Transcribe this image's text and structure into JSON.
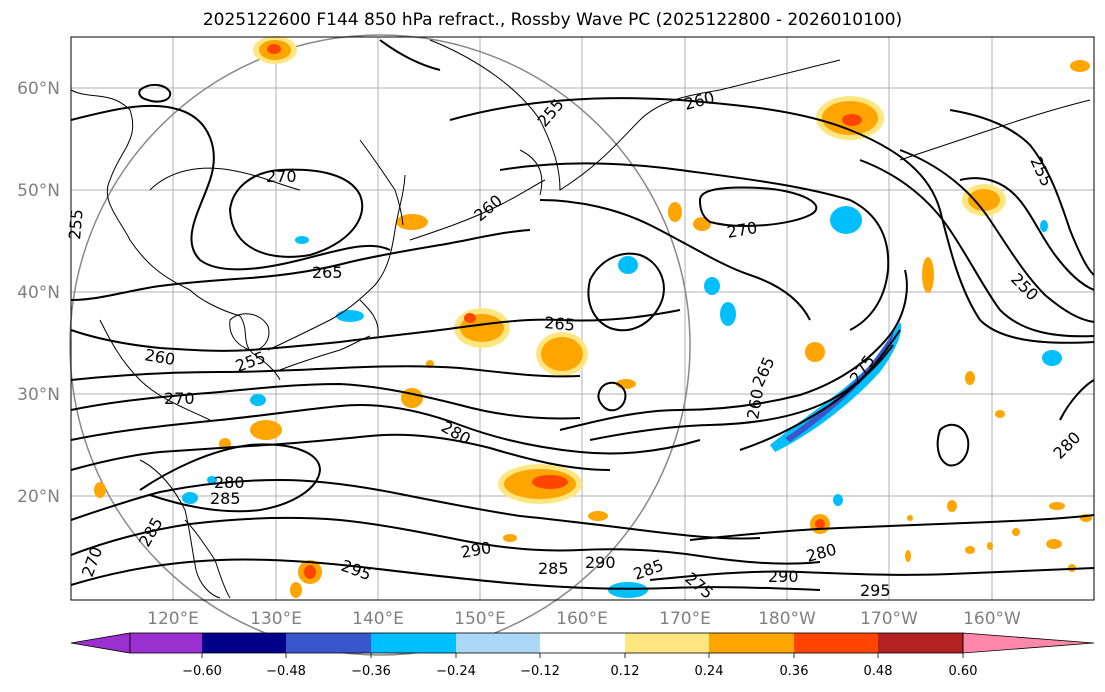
{
  "title": "2025122600 F144 850 hPa refract., Rossby Wave PC (2025122800 - 2026010100)",
  "lat_labels": [
    "60°N",
    "50°N",
    "40°N",
    "30°N",
    "20°N"
  ],
  "lon_labels": [
    "120°E",
    "130°E",
    "140°E",
    "150°E",
    "160°E",
    "170°E",
    "180°W",
    "170°W",
    "160°W"
  ],
  "contour_labels": [
    "255",
    "260",
    "270",
    "265",
    "260",
    "255",
    "250",
    "255",
    "270",
    "265",
    "265",
    "255",
    "260",
    "275",
    "260",
    "270",
    "280",
    "280",
    "285",
    "285",
    "290",
    "290",
    "285",
    "285",
    "290",
    "280",
    "295",
    "295",
    "280",
    "275",
    "270"
  ],
  "colorbar": {
    "ticks": [
      "−0.60",
      "−0.48",
      "−0.36",
      "−0.24",
      "−0.12",
      "0.12",
      "0.24",
      "0.36",
      "0.48",
      "0.60"
    ],
    "colors": [
      "#9b30d0",
      "#00008b",
      "#3a56cc",
      "#00bfff",
      "#add8f5",
      "#ffffff",
      "#ffe680",
      "#ffa500",
      "#ff4500",
      "#b22222",
      "#ff88aa"
    ]
  },
  "fill_colors": {
    "neg_light": "#add8f5",
    "neg_mid": "#00bfff",
    "neg_dark": "#3a56cc",
    "pos_light": "#ffe680",
    "pos_mid": "#ffa500",
    "pos_dark": "#ff4500"
  }
}
